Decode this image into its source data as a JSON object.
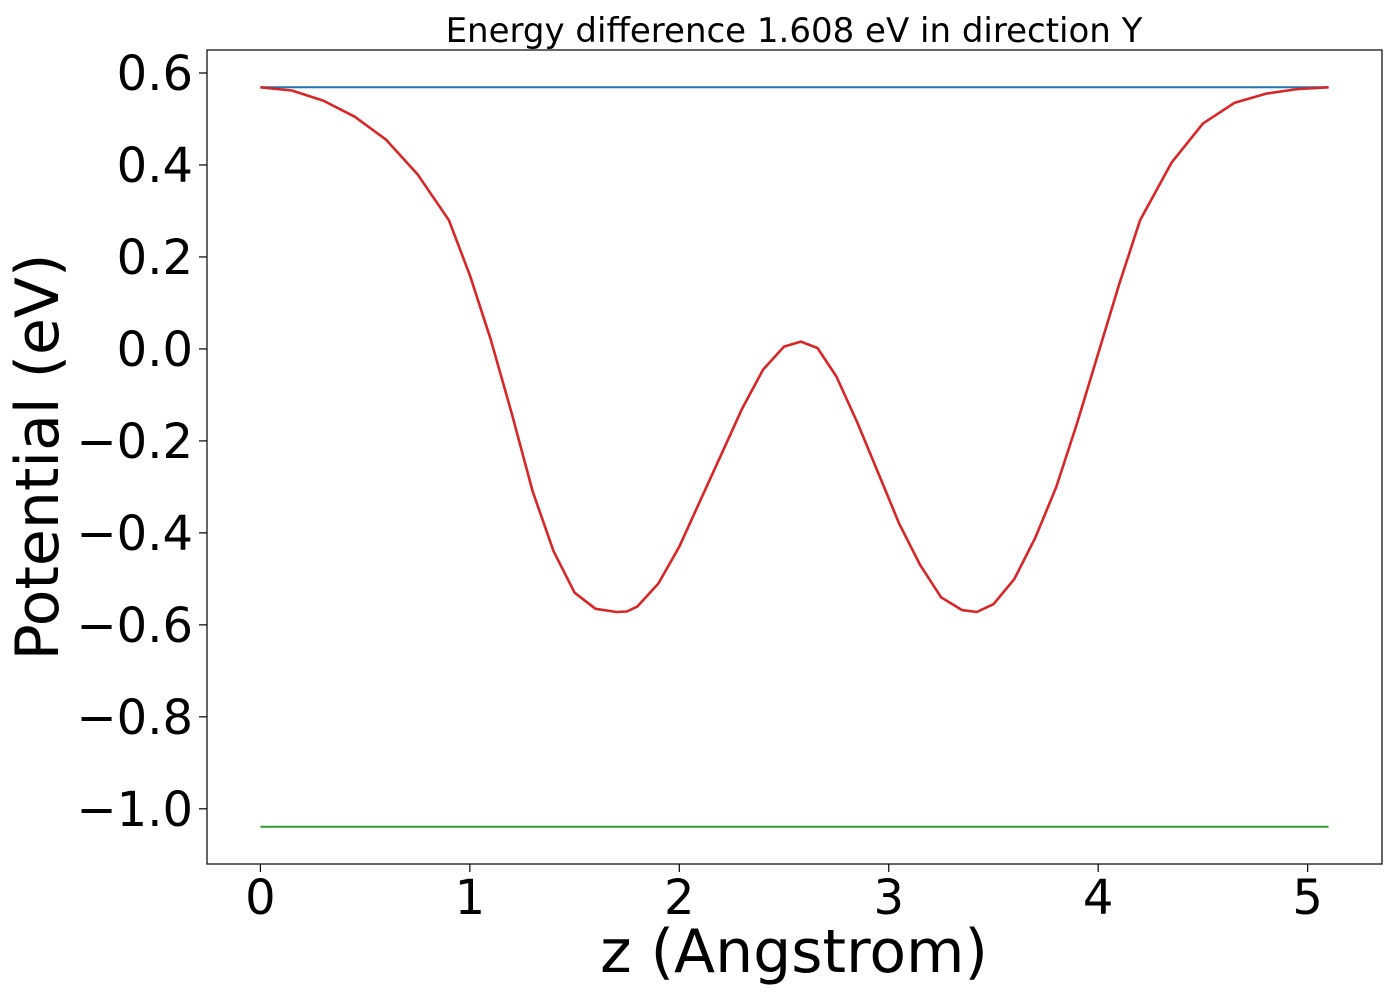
{
  "chart_data": {
    "type": "line",
    "title": "Energy difference 1.608 eV in direction Y",
    "xlabel": "z (Angstrom)",
    "ylabel": "Potential (eV)",
    "xlim": [
      -0.255,
      5.355
    ],
    "ylim": [
      -1.12,
      0.65
    ],
    "x_ticks": [
      {
        "value": 0,
        "label": "0"
      },
      {
        "value": 1,
        "label": "1"
      },
      {
        "value": 2,
        "label": "2"
      },
      {
        "value": 3,
        "label": "3"
      },
      {
        "value": 4,
        "label": "4"
      },
      {
        "value": 5,
        "label": "5"
      }
    ],
    "y_ticks": [
      {
        "value": 0.6,
        "label": "0.6"
      },
      {
        "value": 0.4,
        "label": "0.4"
      },
      {
        "value": 0.2,
        "label": "0.2"
      },
      {
        "value": 0.0,
        "label": "0.0"
      },
      {
        "value": -0.2,
        "label": "−0.2"
      },
      {
        "value": -0.4,
        "label": "−0.4"
      },
      {
        "value": -0.6,
        "label": "−0.6"
      },
      {
        "value": -0.8,
        "label": "−0.8"
      },
      {
        "value": -1.0,
        "label": "−1.0"
      }
    ],
    "grid": false,
    "legend": "none",
    "series": [
      {
        "color": "#1f77b4",
        "x": [
          0,
          5.1
        ],
        "y": [
          0.569,
          0.569
        ]
      },
      {
        "color": "#2ca02c",
        "x": [
          0,
          5.1
        ],
        "y": [
          -1.039,
          -1.039
        ]
      },
      {
        "color": "#d62728",
        "x": [
          0,
          0.15,
          0.3,
          0.45,
          0.6,
          0.75,
          0.9,
          1.0,
          1.1,
          1.2,
          1.3,
          1.4,
          1.5,
          1.6,
          1.7,
          1.75,
          1.8,
          1.9,
          2.0,
          2.1,
          2.2,
          2.3,
          2.4,
          2.5,
          2.58,
          2.66,
          2.75,
          2.85,
          2.95,
          3.05,
          3.15,
          3.25,
          3.35,
          3.42,
          3.5,
          3.6,
          3.7,
          3.8,
          3.9,
          4.0,
          4.1,
          4.2,
          4.35,
          4.5,
          4.65,
          4.8,
          4.95,
          5.1
        ],
        "y": [
          0.569,
          0.562,
          0.54,
          0.505,
          0.455,
          0.38,
          0.28,
          0.16,
          0.02,
          -0.14,
          -0.31,
          -0.44,
          -0.53,
          -0.565,
          -0.572,
          -0.571,
          -0.56,
          -0.51,
          -0.43,
          -0.33,
          -0.23,
          -0.13,
          -0.045,
          0.005,
          0.016,
          0.002,
          -0.06,
          -0.16,
          -0.27,
          -0.38,
          -0.47,
          -0.54,
          -0.568,
          -0.572,
          -0.555,
          -0.5,
          -0.41,
          -0.3,
          -0.16,
          -0.01,
          0.14,
          0.28,
          0.405,
          0.49,
          0.535,
          0.555,
          0.565,
          0.569
        ]
      }
    ]
  }
}
